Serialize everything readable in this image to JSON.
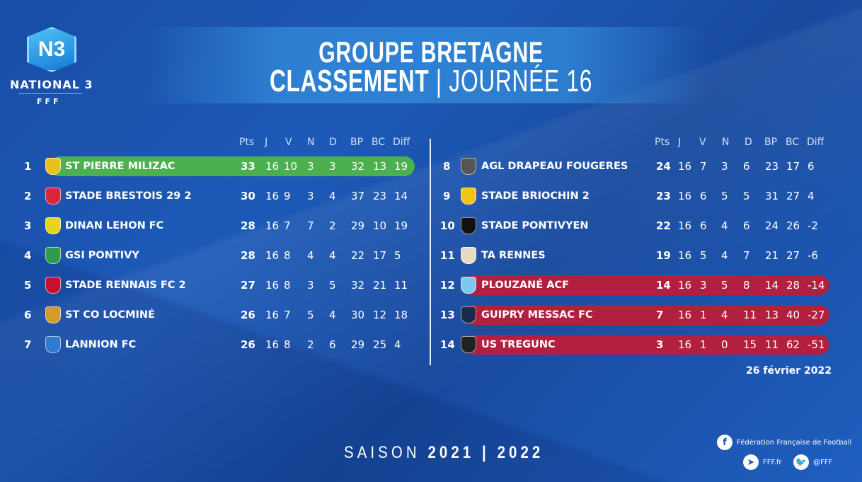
{
  "header": {
    "title_line1": "GROUPE BRETAGNE",
    "title_bold": "CLASSEMENT",
    "title_sep": " | ",
    "title_light": "JOURNÉE 16"
  },
  "logo": {
    "badge": "N3",
    "name": "NATIONAL 3",
    "org": "FFF"
  },
  "columns": [
    "Pts",
    "J",
    "V",
    "N",
    "D",
    "BP",
    "BC",
    "Diff"
  ],
  "colors": {
    "promotion": "#4caf50",
    "relegation": "#b3203f",
    "background": "#1d56b3"
  },
  "standings": [
    {
      "rank": "1",
      "team": "ST PIERRE MILIZAC",
      "stats": [
        "33",
        "16",
        "10",
        "3",
        "3",
        "32",
        "13",
        "19"
      ],
      "zone": "promotion",
      "crest": "#e8c21c"
    },
    {
      "rank": "2",
      "team": "STADE BRESTOIS 29 2",
      "stats": [
        "30",
        "16",
        "9",
        "3",
        "4",
        "37",
        "23",
        "14"
      ],
      "zone": "",
      "crest": "#d9263a"
    },
    {
      "rank": "3",
      "team": "DINAN LEHON FC",
      "stats": [
        "28",
        "16",
        "7",
        "7",
        "2",
        "29",
        "10",
        "19"
      ],
      "zone": "",
      "crest": "#e7d51c"
    },
    {
      "rank": "4",
      "team": "GSI PONTIVY",
      "stats": [
        "28",
        "16",
        "8",
        "4",
        "4",
        "22",
        "17",
        "5"
      ],
      "zone": "",
      "crest": "#2e9c4a"
    },
    {
      "rank": "5",
      "team": "STADE RENNAIS FC 2",
      "stats": [
        "27",
        "16",
        "8",
        "3",
        "5",
        "32",
        "21",
        "11"
      ],
      "zone": "",
      "crest": "#c8102e"
    },
    {
      "rank": "6",
      "team": "ST CO LOCMINÉ",
      "stats": [
        "26",
        "16",
        "7",
        "5",
        "4",
        "30",
        "12",
        "18"
      ],
      "zone": "",
      "crest": "#d59a2a"
    },
    {
      "rank": "7",
      "team": "LANNION FC",
      "stats": [
        "26",
        "16",
        "8",
        "2",
        "6",
        "29",
        "25",
        "4"
      ],
      "zone": "",
      "crest": "#2f7bd1"
    },
    {
      "rank": "8",
      "team": "AGL DRAPEAU FOUGERES",
      "stats": [
        "24",
        "16",
        "7",
        "3",
        "6",
        "23",
        "17",
        "6"
      ],
      "zone": "",
      "crest": "#555555"
    },
    {
      "rank": "9",
      "team": "STADE BRIOCHIN 2",
      "stats": [
        "23",
        "16",
        "6",
        "5",
        "5",
        "31",
        "27",
        "4"
      ],
      "zone": "",
      "crest": "#f2c515"
    },
    {
      "rank": "10",
      "team": "STADE PONTIVYEN",
      "stats": [
        "22",
        "16",
        "6",
        "4",
        "6",
        "24",
        "26",
        "-2"
      ],
      "zone": "",
      "crest": "#111111"
    },
    {
      "rank": "11",
      "team": "TA RENNES",
      "stats": [
        "19",
        "16",
        "5",
        "4",
        "7",
        "21",
        "27",
        "-6"
      ],
      "zone": "",
      "crest": "#e8dcc0"
    },
    {
      "rank": "12",
      "team": "PLOUZANÉ ACF",
      "stats": [
        "14",
        "16",
        "3",
        "5",
        "8",
        "14",
        "28",
        "-14"
      ],
      "zone": "relegation",
      "crest": "#7ec8f0"
    },
    {
      "rank": "13",
      "team": "GUIPRY MESSAC FC",
      "stats": [
        "7",
        "16",
        "1",
        "4",
        "11",
        "13",
        "40",
        "-27"
      ],
      "zone": "relegation",
      "crest": "#1b2a4a"
    },
    {
      "rank": "14",
      "team": "US TREGUNC",
      "stats": [
        "3",
        "16",
        "1",
        "0",
        "15",
        "11",
        "62",
        "-51"
      ],
      "zone": "relegation",
      "crest": "#222222"
    }
  ],
  "date": "26 février 2022",
  "season": {
    "label": "SAISON",
    "years": "2021 | 2022"
  },
  "social": {
    "facebook": "Fédération Française de Football",
    "web": "FFF.fr",
    "twitter": "@FFF"
  }
}
